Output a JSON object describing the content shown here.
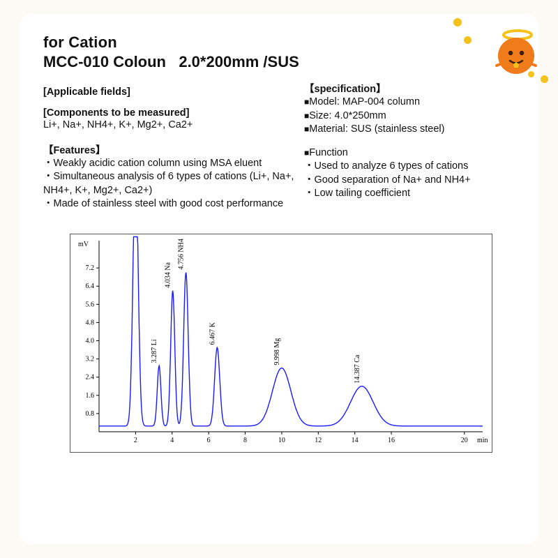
{
  "title_line1": "for Cation",
  "title_line2": "MCC-010 Coloun   2.0*200mm /SUS",
  "left": {
    "applicable_hdr": "[Applicable fields]",
    "components_hdr": "[Components to be measured]",
    "components_txt": "Li+, Na+, NH4+, K+, Mg2+, Ca2+",
    "features_hdr": "【Features】",
    "features": [
      "Weakly acidic cation column using MSA eluent",
      "Simultaneous analysis of 6 types of cations (Li+, Na+, NH4+, K+, Mg2+, Ca2+)",
      "Made of stainless steel with good cost performance"
    ]
  },
  "right": {
    "spec_hdr": "【specification】",
    "specs": [
      "Model: MAP-004 column",
      "Size: 4.0*250mm",
      "Material: SUS (stainless steel)"
    ],
    "func_hdr": "Function",
    "funcs": [
      "Used to analyze 6 types of cations",
      "Good separation of Na+ and NH4+",
      "Low tailing coefficient"
    ]
  },
  "chart": {
    "type": "chromatogram-line",
    "background_color": "#ffffff",
    "axis_color": "#000000",
    "line_color": "#1a1aff",
    "line_width": 1.4,
    "frame_color": "#555555",
    "x_unit_label": "min",
    "y_unit_label": "mV",
    "x_ticks": [
      2,
      4,
      6,
      8,
      10,
      12,
      14,
      16,
      20
    ],
    "y_ticks": [
      0.8,
      1.6,
      2.4,
      3.2,
      4.0,
      4.8,
      5.6,
      6.4,
      7.2
    ],
    "xlim": [
      0,
      21
    ],
    "ylim": [
      0,
      8.4
    ],
    "baseline_y": 0.25,
    "tick_fontsize": 10,
    "label_fontsize": 10,
    "peaks": [
      {
        "label": "3.287 Li",
        "rt": 3.287,
        "height": 2.9,
        "hw": 0.18
      },
      {
        "label": "4.034 Na",
        "rt": 4.034,
        "height": 6.2,
        "hw": 0.2
      },
      {
        "label": "4.756 NH4",
        "rt": 4.756,
        "height": 7.0,
        "hw": 0.22
      },
      {
        "label": "6.467 K",
        "rt": 6.467,
        "height": 3.7,
        "hw": 0.25
      },
      {
        "label": "9.998 Mg",
        "rt": 9.998,
        "height": 2.8,
        "hw": 0.9
      },
      {
        "label": "14.387 Ca",
        "rt": 14.387,
        "height": 2.0,
        "hw": 1.1
      }
    ],
    "leading_spike": {
      "rt": 2.0,
      "height": 12,
      "hw": 0.25
    }
  },
  "mascot": {
    "body_color": "#f07b1a",
    "halo_color": "#f4c21a",
    "accent_color": "#ffffff"
  }
}
